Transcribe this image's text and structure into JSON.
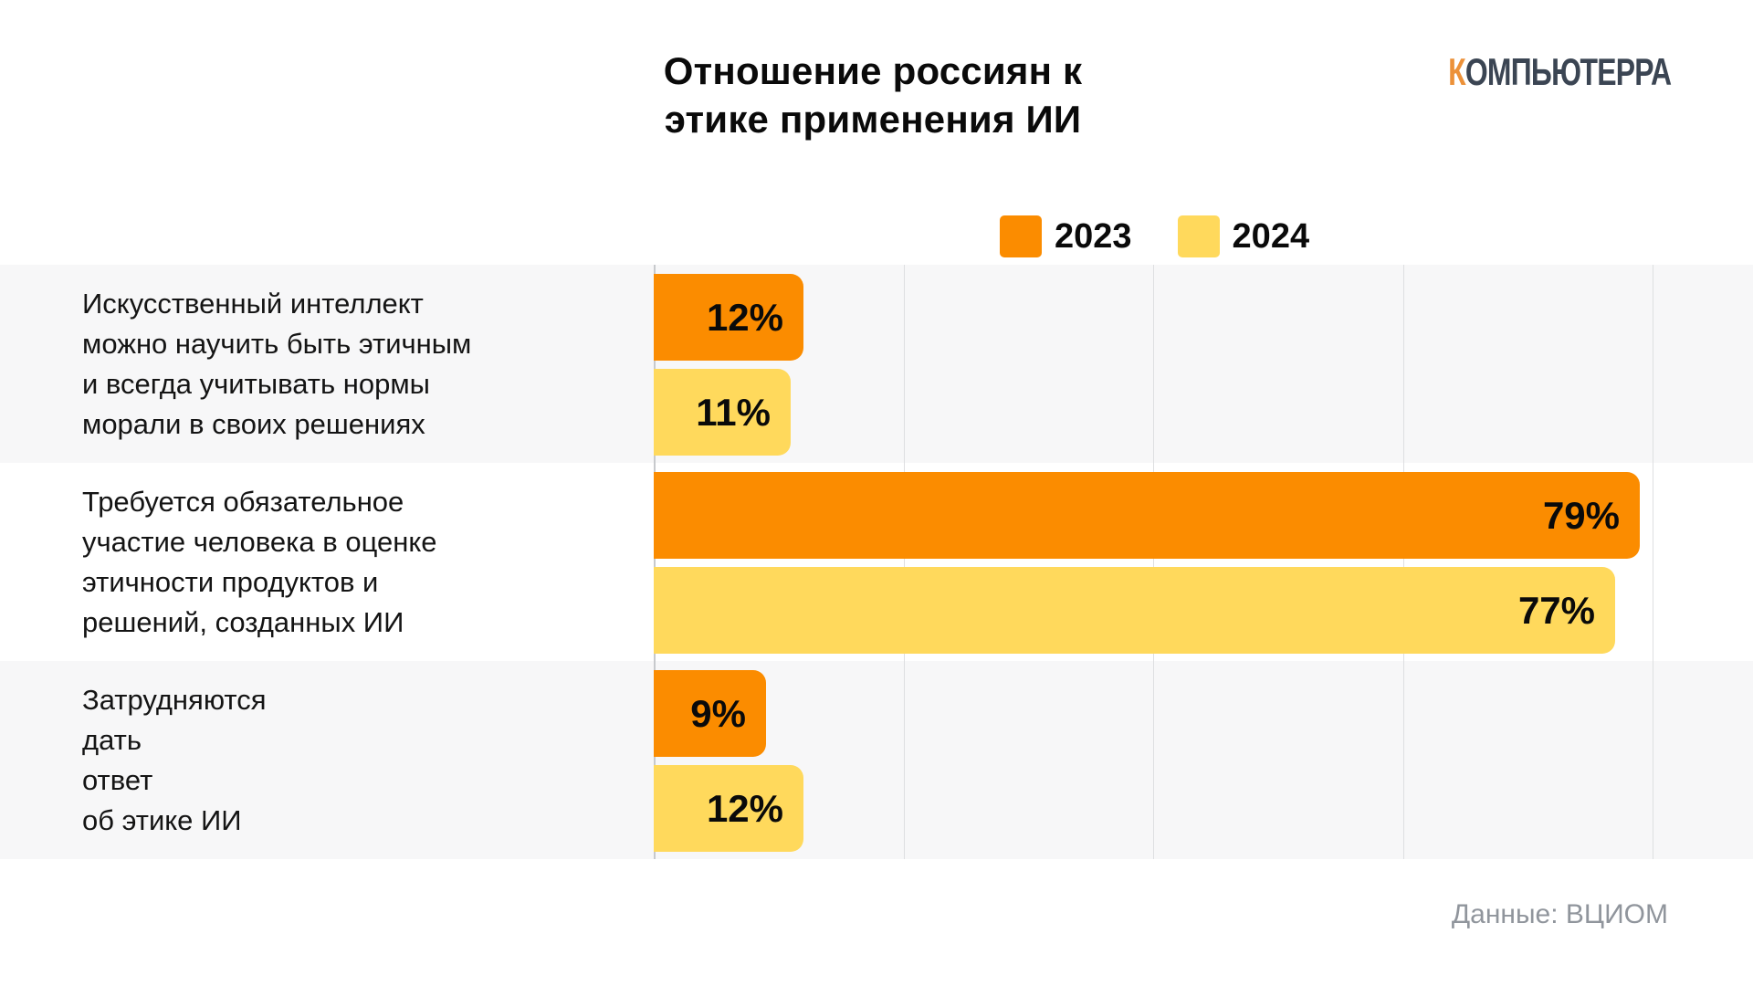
{
  "header": {
    "title_line1": "Отношение россиян к",
    "title_line2": "этике применения ИИ",
    "logo": {
      "first_letter": "К",
      "rest": "ОМПЬЮТЕРРА"
    }
  },
  "source_note": "Данные: ВЦИОМ",
  "chart_data": {
    "type": "bar",
    "orientation": "horizontal",
    "title": "Отношение россиян к этике применения ИИ",
    "categories": [
      {
        "lines": [
          "Искусственный интеллект",
          "можно научить быть этичным",
          "и всегда учитывать нормы",
          "морали в своих решениях"
        ]
      },
      {
        "lines": [
          "Требуется обязательное",
          "участие человека в оценке",
          "этичности продуктов и",
          "решений, созданных ИИ"
        ]
      },
      {
        "lines": [
          "Затрудняются",
          "дать",
          "ответ",
          "об этике ИИ"
        ]
      }
    ],
    "series": [
      {
        "name": "2023",
        "color": "#fb8c00",
        "values": [
          12,
          79,
          9
        ]
      },
      {
        "name": "2024",
        "color": "#ffd95c",
        "values": [
          11,
          77,
          12
        ]
      }
    ],
    "value_suffix": "%",
    "axis": {
      "min": 0,
      "max": 80,
      "gridline_step": 20
    },
    "grid": true,
    "legend_position": "top",
    "row_band_colors": [
      "#f7f7f8",
      "#ffffff",
      "#f7f7f8"
    ]
  }
}
